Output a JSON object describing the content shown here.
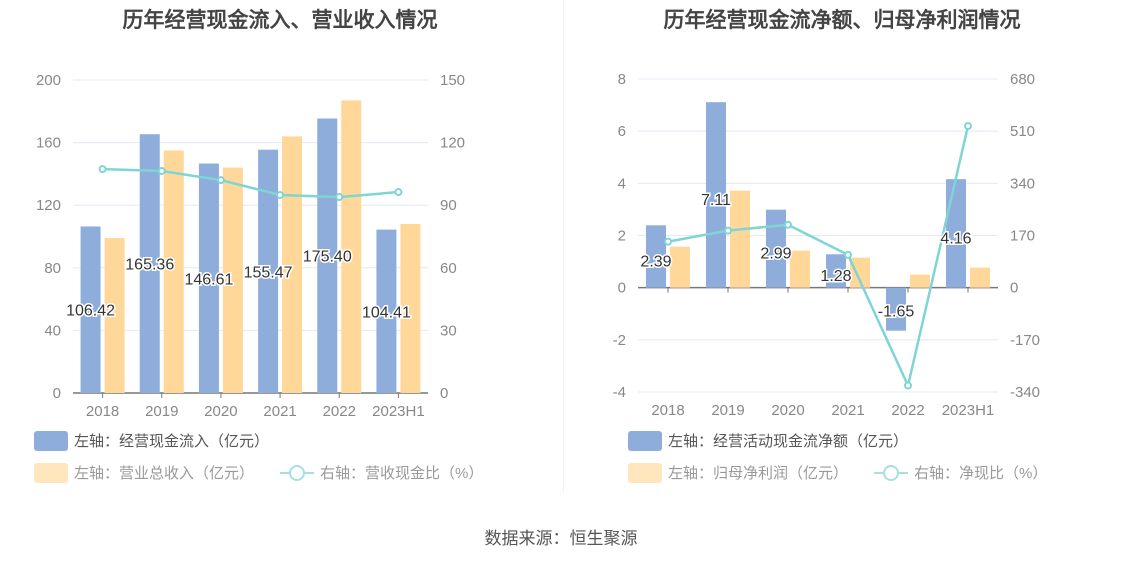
{
  "source": "数据来源：恒生聚源",
  "colors": {
    "blue": "#8eadda",
    "orange": "#ffd899",
    "line": "#7fd4d6"
  },
  "chart_data": [
    {
      "type": "bar",
      "title": "历年经营现金流入、营业收入情况",
      "categories": [
        "2018",
        "2019",
        "2020",
        "2021",
        "2022",
        "2023H1"
      ],
      "left_axis": {
        "ylim": [
          0,
          200
        ],
        "ticks": [
          "0",
          "40",
          "80",
          "120",
          "160",
          "200"
        ]
      },
      "right_axis": {
        "ylim": [
          0,
          150
        ],
        "ticks": [
          "0",
          "30",
          "60",
          "90",
          "120",
          "150"
        ]
      },
      "series": [
        {
          "name": "左轴：经营现金流入（亿元）",
          "axis": "left",
          "type": "bar",
          "values": [
            106.42,
            165.36,
            146.61,
            155.47,
            175.4,
            104.41
          ],
          "labels": [
            "106.42",
            "165.36",
            "146.61",
            "155.47",
            "175.40",
            "104.41"
          ]
        },
        {
          "name": "左轴：营业总收入（亿元）",
          "axis": "left",
          "type": "bar",
          "values": [
            99,
            155,
            144,
            164,
            187,
            108
          ]
        },
        {
          "name": "右轴：营收现金比（%）",
          "axis": "right",
          "type": "line",
          "values": [
            107.3,
            106.4,
            102,
            94.9,
            93.9,
            96.3
          ]
        }
      ]
    },
    {
      "type": "bar",
      "title": "历年经营现金流净额、归母净利润情况",
      "categories": [
        "2018",
        "2019",
        "2020",
        "2021",
        "2022",
        "2023H1"
      ],
      "left_axis": {
        "ylim": [
          -4,
          8
        ],
        "ticks": [
          "-4",
          "-2",
          "0",
          "2",
          "4",
          "6",
          "8"
        ]
      },
      "right_axis": {
        "ylim": [
          -340,
          680
        ],
        "ticks": [
          "-340",
          "-170",
          "0",
          "170",
          "340",
          "510",
          "680"
        ]
      },
      "series": [
        {
          "name": "左轴：经营活动现金流净额（亿元）",
          "axis": "left",
          "type": "bar",
          "values": [
            2.39,
            7.11,
            2.99,
            1.28,
            -1.65,
            4.16
          ],
          "labels": [
            "2.39",
            "7.11",
            "2.99",
            "1.28",
            "-1.65",
            "4.16"
          ]
        },
        {
          "name": "左轴：归母净利润（亿元）",
          "axis": "left",
          "type": "bar",
          "values": [
            1.57,
            3.72,
            1.42,
            1.15,
            0.5,
            0.77
          ]
        },
        {
          "name": "右轴：净现比（%）",
          "axis": "right",
          "type": "line",
          "values": [
            150,
            186,
            205,
            107,
            -319,
            527
          ]
        }
      ]
    }
  ]
}
